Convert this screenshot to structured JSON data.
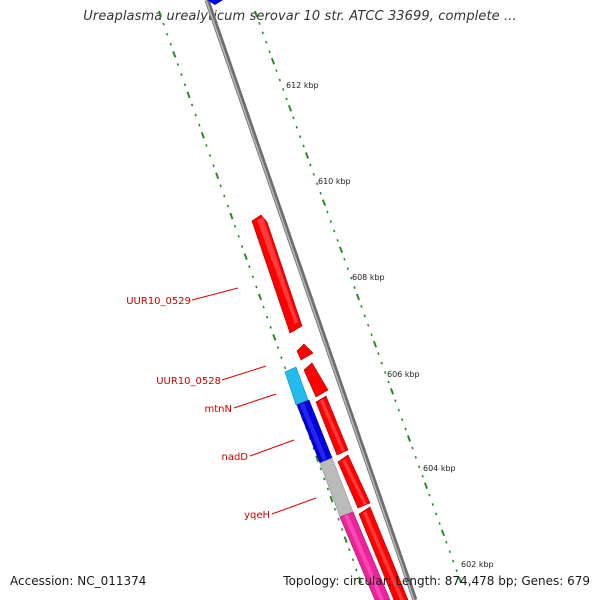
{
  "title": "Ureaplasma urealyticum serovar 10 str. ATCC 33699, complete ...",
  "footer": {
    "accession": "Accession: NC_011374",
    "summary": "Topology: circular; Length: 874,478 bp; Genes: 679"
  },
  "scale_labels": [
    "612 kbp",
    "610 kbp",
    "608 kbp",
    "606 kbp",
    "604 kbp",
    "602 kbp"
  ],
  "gene_labels": [
    "UUR10_0529",
    "UUR10_0528",
    "mtnN",
    "nadD",
    "yqeH"
  ],
  "colors": {
    "backbone": "#8c8c8c",
    "tick": "#2a8a2a",
    "label_red": "#cc0000",
    "gene_red": "#ff0000",
    "gene_blue": "#0000dd",
    "gene_cyan": "#22bbee",
    "gene_grey": "#bbbbbb",
    "gene_pink": "#ee2299"
  }
}
